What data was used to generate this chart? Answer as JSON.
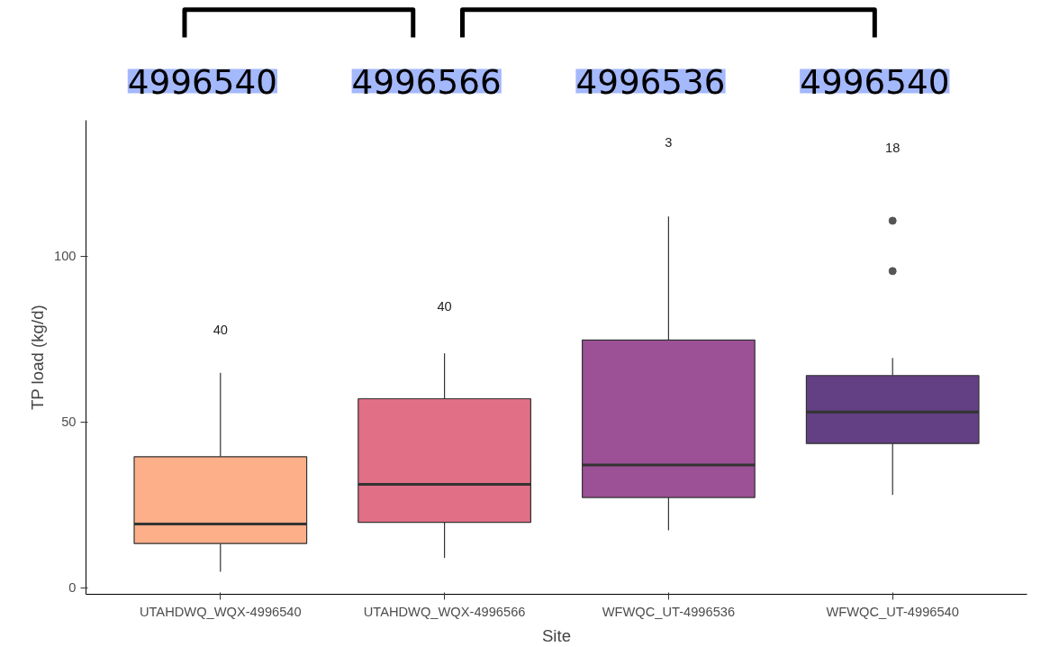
{
  "chart_data": {
    "type": "box",
    "categories": [
      "UTAHDWQ_WQX-4996540",
      "UTAHDWQ_WQX-4996566",
      "WFWQC_UT-4996536",
      "WFWQC_UT-4996540"
    ],
    "boxes": [
      {
        "low": 4.8,
        "q1": 13.3,
        "median": 19.2,
        "q3": 39.5,
        "high": 64.8
      },
      {
        "low": 9,
        "q1": 19.7,
        "median": 31.2,
        "q3": 57,
        "high": 70.7
      },
      {
        "low": 17.3,
        "q1": 27.2,
        "median": 37,
        "q3": 74.7,
        "high": 112
      },
      {
        "low": 28,
        "q1": 43.5,
        "median": 53,
        "q3": 64,
        "high": 69.3,
        "outliers": [
          95.5,
          110.7
        ]
      }
    ],
    "colors": [
      "#fdaf8a",
      "#e16f86",
      "#9c5197",
      "#633f83"
    ],
    "xlabel": "Site",
    "ylabel": "TP load (kg/d)",
    "ylim": [
      -2,
      141
    ],
    "yticks": [
      0,
      50,
      100
    ],
    "annotations": [
      "40",
      "40",
      "3",
      "18",
      "4996540",
      "4996566",
      "4996536",
      "4996540"
    ]
  }
}
